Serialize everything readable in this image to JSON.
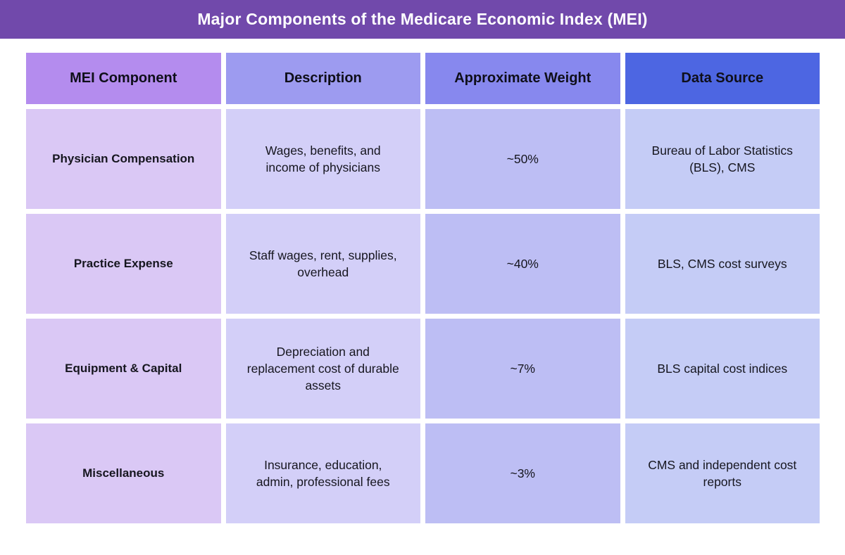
{
  "title_bar": {
    "text": "Major Components of the Medicare Economic Index (MEI)",
    "bg": "#7149ab"
  },
  "chart_data": {
    "type": "table",
    "title": "Major Components of the Medicare Economic Index (MEI)",
    "columns": [
      "MEI Component",
      "Description",
      "Approximate Weight",
      "Data Source"
    ],
    "rows": [
      [
        "Physician Compensation",
        "Wages, benefits, and income of physicians",
        "~50%",
        "Bureau of Labor Statistics (BLS), CMS"
      ],
      [
        "Practice Expense",
        "Staff wages, rent, supplies, overhead",
        "~40%",
        "BLS, CMS cost surveys"
      ],
      [
        "Equipment & Capital",
        "Depreciation and replacement cost of durable assets",
        "~7%",
        "BLS capital cost indices"
      ],
      [
        "Miscellaneous",
        "Insurance, education, admin, professional fees",
        "~3%",
        "CMS and independent cost reports"
      ]
    ],
    "layout_hints": {
      "header_row": true,
      "grid": "white gaps between flat-colored cells",
      "legend_position": "none"
    }
  },
  "colors": {
    "page_bg": "#ffffff",
    "title_text": "#ffffff",
    "text_dark": "#16161f",
    "header_bgs": [
      "#b48cee",
      "#9d9bf0",
      "#8788ee",
      "#4d66e2"
    ],
    "cell_bgs": [
      "#dac8f5",
      "#d3cff8",
      "#bdbef4",
      "#c5ccf6"
    ]
  }
}
